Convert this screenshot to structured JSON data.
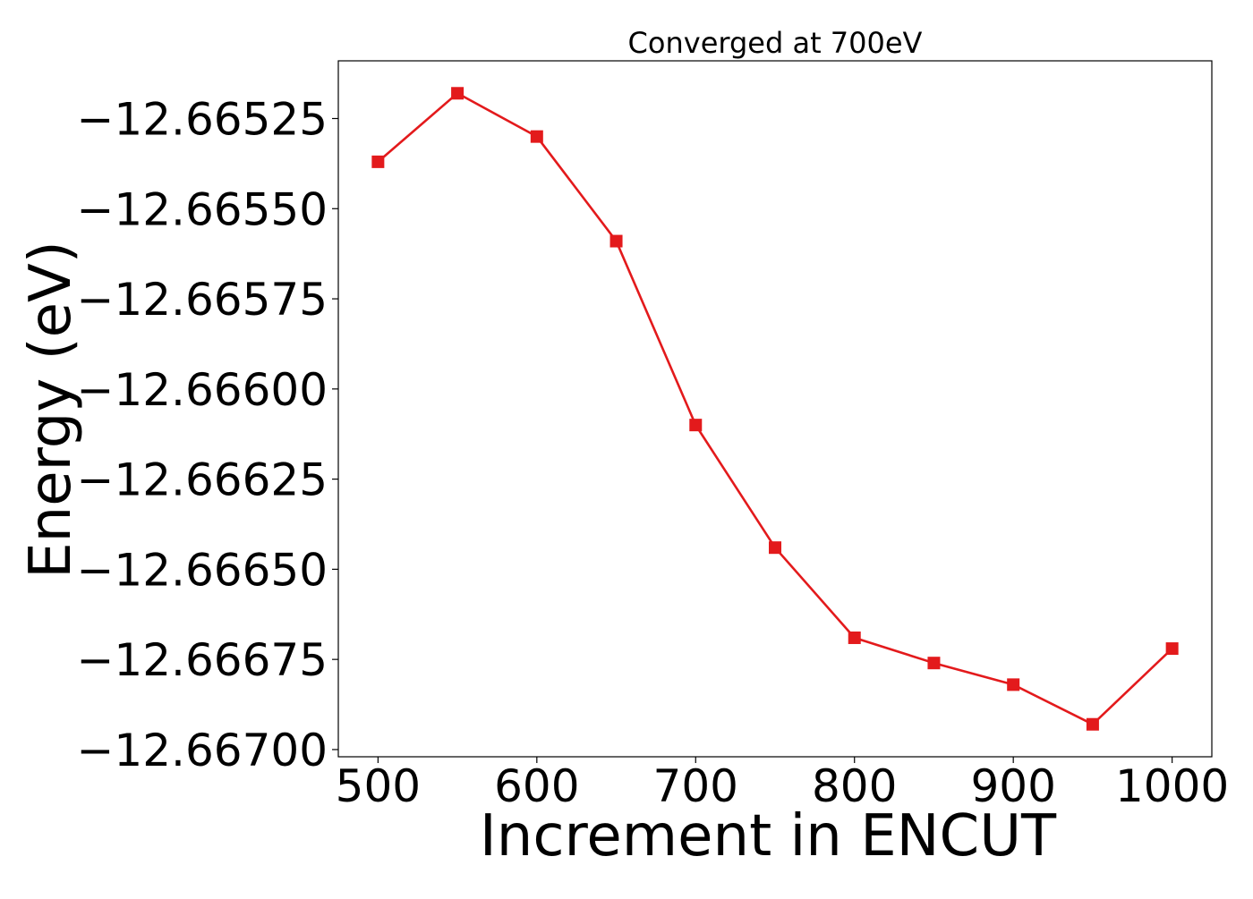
{
  "chart_data": {
    "type": "line",
    "title": "Converged at 700eV",
    "xlabel": "Increment in ENCUT",
    "ylabel": "Energy (eV)",
    "x": [
      500,
      550,
      600,
      650,
      700,
      750,
      800,
      850,
      900,
      950,
      1000
    ],
    "xticks": [
      500,
      600,
      700,
      800,
      900,
      1000
    ],
    "xtick_labels": [
      "500",
      "600",
      "700",
      "800",
      "900",
      "1000"
    ],
    "xlim": [
      475,
      1025
    ],
    "ylim": [
      -12.66702,
      -12.66509
    ],
    "yticks": [
      -12.66525,
      -12.6655,
      -12.66575,
      -12.666,
      -12.66625,
      -12.6665,
      -12.66675,
      -12.667
    ],
    "ytick_labels": [
      "−12.66525",
      "−12.66550",
      "−12.66575",
      "−12.66600",
      "−12.66625",
      "−12.66650",
      "−12.66675",
      "−12.66700"
    ],
    "series": [
      {
        "color": "#e31a1c",
        "marker": "square",
        "values": [
          -12.66537,
          -12.66518,
          -12.6653,
          -12.66559,
          -12.6661,
          -12.66644,
          -12.66669,
          -12.66676,
          -12.66682,
          -12.66693,
          -12.66672
        ]
      }
    ],
    "grid": false,
    "legend": "none"
  }
}
